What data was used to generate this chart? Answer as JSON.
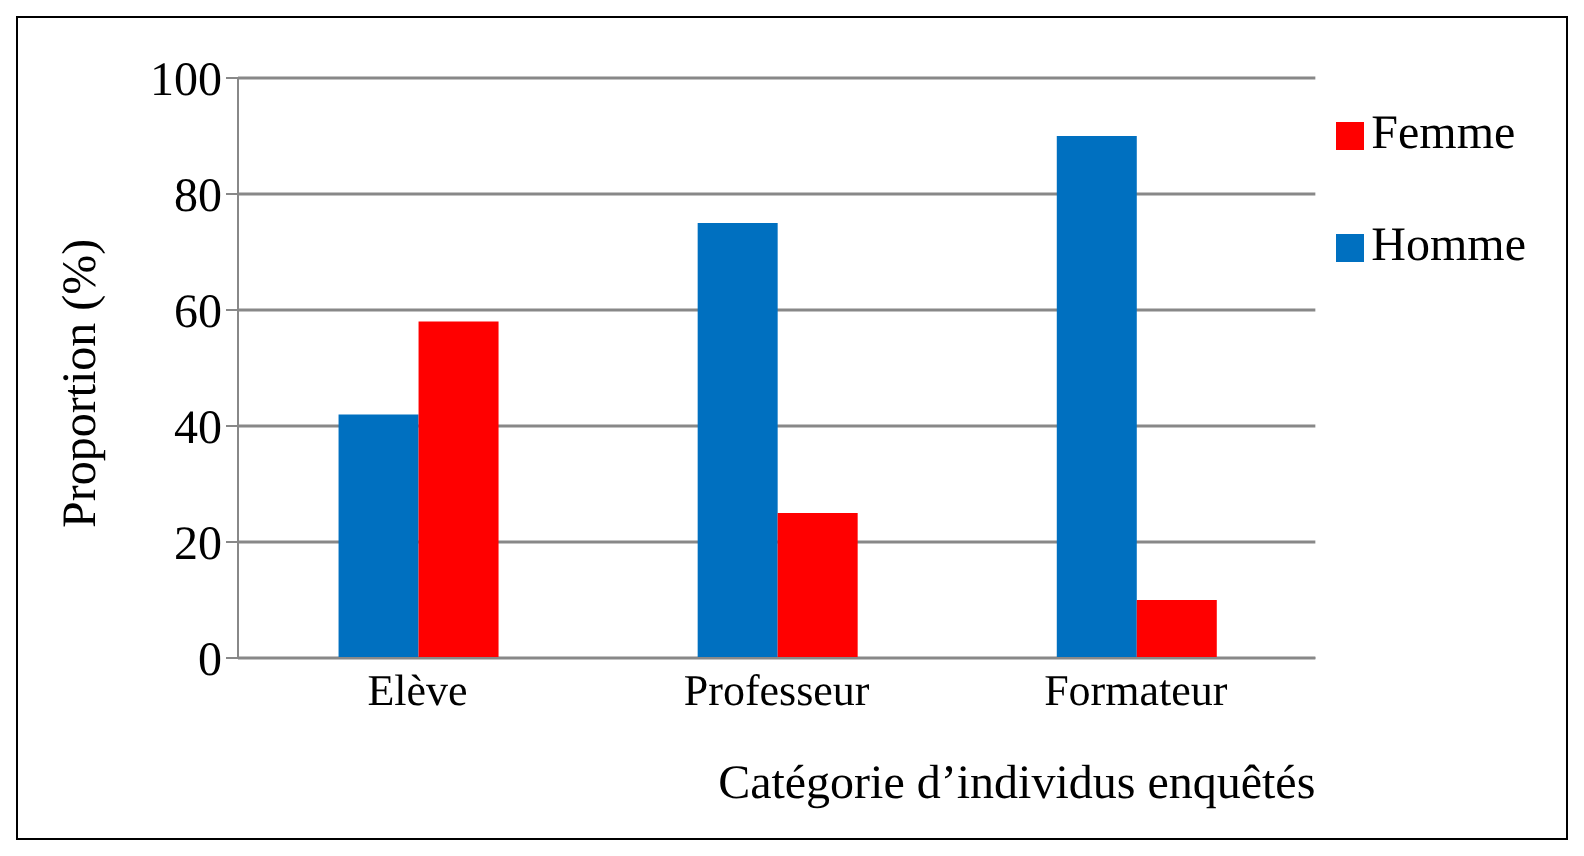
{
  "chart_data": {
    "type": "bar",
    "xlabel": "Catégorie d’individus enquêtés",
    "ylabel": "Proportion (%)",
    "categories": [
      "Elève",
      "Professeur",
      "Formateur"
    ],
    "series": [
      {
        "name": "Homme",
        "color": "#0070c0",
        "values": [
          42,
          75,
          90
        ]
      },
      {
        "name": "Femme",
        "color": "#ff0000",
        "values": [
          58,
          25,
          10
        ]
      }
    ],
    "ylim": [
      0,
      100
    ],
    "yticks": [
      0,
      20,
      40,
      60,
      80,
      100
    ],
    "grid": "y",
    "legend": "right"
  }
}
